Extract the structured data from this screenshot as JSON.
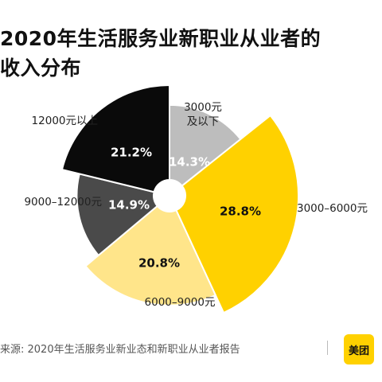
{
  "title_lines": [
    "2020年生活服务业新职业从业者的",
    "收入分布"
  ],
  "source": "来源: 2020年生活服务业新业态和新职业从业者报告",
  "logo": "美团",
  "chart_data": {
    "type": "pie",
    "variant": "rose",
    "title": "2020年生活服务业新职业从业者的收入分布",
    "categories": [
      "3000元及以下",
      "3000-6000元",
      "6000-9000元",
      "9000-12000元",
      "12000元以上"
    ],
    "category_lines": [
      [
        "3000元",
        "及以下"
      ],
      [
        "3000–6000元"
      ],
      [
        "6000–9000元"
      ],
      [
        "9000–12000元"
      ],
      [
        "12000元以上"
      ]
    ],
    "values": [
      14.3,
      28.8,
      20.8,
      14.9,
      21.2
    ],
    "value_labels": [
      "14.3%",
      "28.8%",
      "20.8%",
      "14.9%",
      "21.2%"
    ],
    "colors": [
      "#BDBDBD",
      "#FFD100",
      "#FFE58A",
      "#4A4A4A",
      "#0A0A0A"
    ],
    "value_label_colors": [
      "#ffffff",
      "#111111",
      "#111111",
      "#ffffff",
      "#ffffff"
    ],
    "start": "top",
    "direction": "clockwise"
  }
}
